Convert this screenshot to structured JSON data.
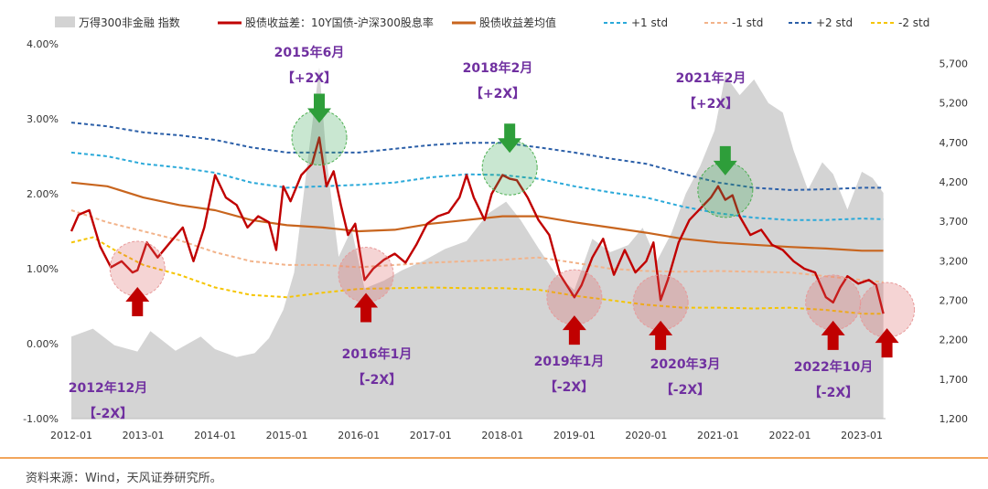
{
  "source": "资料来源：Wind，天风证券研究所。",
  "chart_data": {
    "type": "area+line",
    "title": "",
    "legend": [
      {
        "label": "万得300非金融 指数",
        "color": "#d3d3d3",
        "style": "area"
      },
      {
        "label": "股债收益差：10Y国债-沪深300股息率",
        "color": "#c00000",
        "style": "line"
      },
      {
        "label": "股债收益差均值",
        "color": "#c8651e",
        "style": "line"
      },
      {
        "label": "+1 std",
        "color": "#2aa9d9",
        "style": "dash"
      },
      {
        "label": "-1 std",
        "color": "#f2b38a",
        "style": "dash"
      },
      {
        "label": "+2 std",
        "color": "#2b5fa8",
        "style": "dash"
      },
      {
        "label": "-2 std",
        "color": "#f5c400",
        "style": "dash"
      }
    ],
    "x_ticks": [
      "2012-01",
      "2013-01",
      "2014-01",
      "2015-01",
      "2016-01",
      "2017-01",
      "2018-01",
      "2019-01",
      "2020-01",
      "2021-01",
      "2022-01",
      "2023-01"
    ],
    "y_left_ticks": [
      "4.00%",
      "3.00%",
      "2.00%",
      "1.00%",
      "0.00%",
      "-1.00%"
    ],
    "y_left_range": [
      -1.0,
      4.0
    ],
    "y_right_ticks": [
      "5,700",
      "5,200",
      "4,700",
      "4,200",
      "3,700",
      "3,200",
      "2,700",
      "2,200",
      "1,700",
      "1,200"
    ],
    "y_right_range": [
      1200,
      5950
    ],
    "x_range": [
      2012.0,
      2023.33
    ],
    "index_series": [
      [
        2012.0,
        2240
      ],
      [
        2012.3,
        2340
      ],
      [
        2012.6,
        2130
      ],
      [
        2012.92,
        2050
      ],
      [
        2013.1,
        2310
      ],
      [
        2013.45,
        2060
      ],
      [
        2013.8,
        2240
      ],
      [
        2014.0,
        2080
      ],
      [
        2014.3,
        1980
      ],
      [
        2014.55,
        2030
      ],
      [
        2014.75,
        2220
      ],
      [
        2014.95,
        2580
      ],
      [
        2015.1,
        3050
      ],
      [
        2015.3,
        4550
      ],
      [
        2015.45,
        5650
      ],
      [
        2015.55,
        4500
      ],
      [
        2015.72,
        3250
      ],
      [
        2015.9,
        3600
      ],
      [
        2016.08,
        2850
      ],
      [
        2016.35,
        2950
      ],
      [
        2016.6,
        3080
      ],
      [
        2016.9,
        3200
      ],
      [
        2017.2,
        3350
      ],
      [
        2017.5,
        3450
      ],
      [
        2017.8,
        3800
      ],
      [
        2018.05,
        3950
      ],
      [
        2018.25,
        3720
      ],
      [
        2018.5,
        3360
      ],
      [
        2018.75,
        3020
      ],
      [
        2019.0,
        2830
      ],
      [
        2019.25,
        3480
      ],
      [
        2019.5,
        3310
      ],
      [
        2019.75,
        3400
      ],
      [
        2019.95,
        3620
      ],
      [
        2020.15,
        3200
      ],
      [
        2020.35,
        3550
      ],
      [
        2020.55,
        4050
      ],
      [
        2020.75,
        4400
      ],
      [
        2020.95,
        4850
      ],
      [
        2021.1,
        5550
      ],
      [
        2021.3,
        5300
      ],
      [
        2021.5,
        5500
      ],
      [
        2021.7,
        5200
      ],
      [
        2021.9,
        5080
      ],
      [
        2022.05,
        4600
      ],
      [
        2022.25,
        4100
      ],
      [
        2022.45,
        4450
      ],
      [
        2022.6,
        4300
      ],
      [
        2022.8,
        3850
      ],
      [
        2023.0,
        4330
      ],
      [
        2023.15,
        4250
      ],
      [
        2023.3,
        4060
      ]
    ],
    "spread_series": [
      [
        2012.0,
        1.5
      ],
      [
        2012.1,
        1.72
      ],
      [
        2012.25,
        1.78
      ],
      [
        2012.4,
        1.3
      ],
      [
        2012.55,
        1.02
      ],
      [
        2012.7,
        1.1
      ],
      [
        2012.85,
        0.95
      ],
      [
        2012.92,
        0.98
      ],
      [
        2013.05,
        1.35
      ],
      [
        2013.2,
        1.15
      ],
      [
        2013.4,
        1.38
      ],
      [
        2013.55,
        1.55
      ],
      [
        2013.7,
        1.1
      ],
      [
        2013.85,
        1.55
      ],
      [
        2014.0,
        2.25
      ],
      [
        2014.15,
        1.95
      ],
      [
        2014.3,
        1.85
      ],
      [
        2014.45,
        1.55
      ],
      [
        2014.6,
        1.7
      ],
      [
        2014.75,
        1.62
      ],
      [
        2014.85,
        1.25
      ],
      [
        2014.95,
        2.1
      ],
      [
        2015.05,
        1.9
      ],
      [
        2015.2,
        2.25
      ],
      [
        2015.35,
        2.4
      ],
      [
        2015.45,
        2.75
      ],
      [
        2015.55,
        2.1
      ],
      [
        2015.65,
        2.3
      ],
      [
        2015.75,
        1.85
      ],
      [
        2015.85,
        1.45
      ],
      [
        2015.95,
        1.6
      ],
      [
        2016.08,
        0.85
      ],
      [
        2016.2,
        1.0
      ],
      [
        2016.35,
        1.12
      ],
      [
        2016.5,
        1.2
      ],
      [
        2016.65,
        1.08
      ],
      [
        2016.8,
        1.32
      ],
      [
        2016.95,
        1.6
      ],
      [
        2017.1,
        1.7
      ],
      [
        2017.25,
        1.75
      ],
      [
        2017.4,
        1.95
      ],
      [
        2017.5,
        2.25
      ],
      [
        2017.6,
        1.95
      ],
      [
        2017.75,
        1.65
      ],
      [
        2017.85,
        2.0
      ],
      [
        2018.0,
        2.25
      ],
      [
        2018.1,
        2.2
      ],
      [
        2018.2,
        2.18
      ],
      [
        2018.35,
        1.95
      ],
      [
        2018.5,
        1.65
      ],
      [
        2018.65,
        1.45
      ],
      [
        2018.8,
        0.92
      ],
      [
        2019.0,
        0.62
      ],
      [
        2019.1,
        0.78
      ],
      [
        2019.25,
        1.15
      ],
      [
        2019.4,
        1.4
      ],
      [
        2019.55,
        0.92
      ],
      [
        2019.7,
        1.25
      ],
      [
        2019.85,
        0.95
      ],
      [
        2020.0,
        1.1
      ],
      [
        2020.1,
        1.35
      ],
      [
        2020.2,
        0.58
      ],
      [
        2020.3,
        0.85
      ],
      [
        2020.45,
        1.35
      ],
      [
        2020.6,
        1.65
      ],
      [
        2020.75,
        1.8
      ],
      [
        2020.9,
        1.95
      ],
      [
        2021.0,
        2.1
      ],
      [
        2021.1,
        1.92
      ],
      [
        2021.2,
        1.98
      ],
      [
        2021.3,
        1.7
      ],
      [
        2021.45,
        1.45
      ],
      [
        2021.6,
        1.52
      ],
      [
        2021.75,
        1.32
      ],
      [
        2021.9,
        1.25
      ],
      [
        2022.05,
        1.1
      ],
      [
        2022.2,
        1.0
      ],
      [
        2022.35,
        0.95
      ],
      [
        2022.5,
        0.62
      ],
      [
        2022.6,
        0.55
      ],
      [
        2022.7,
        0.75
      ],
      [
        2022.8,
        0.9
      ],
      [
        2022.95,
        0.8
      ],
      [
        2023.1,
        0.85
      ],
      [
        2023.2,
        0.78
      ],
      [
        2023.3,
        0.4
      ]
    ],
    "mean_series": [
      [
        2012.0,
        2.15
      ],
      [
        2012.5,
        2.1
      ],
      [
        2013.0,
        1.95
      ],
      [
        2013.5,
        1.85
      ],
      [
        2014.0,
        1.78
      ],
      [
        2014.5,
        1.65
      ],
      [
        2015.0,
        1.58
      ],
      [
        2015.5,
        1.55
      ],
      [
        2016.0,
        1.5
      ],
      [
        2016.5,
        1.52
      ],
      [
        2017.0,
        1.6
      ],
      [
        2017.5,
        1.65
      ],
      [
        2018.0,
        1.7
      ],
      [
        2018.5,
        1.7
      ],
      [
        2019.0,
        1.62
      ],
      [
        2019.5,
        1.55
      ],
      [
        2020.0,
        1.48
      ],
      [
        2020.5,
        1.4
      ],
      [
        2021.0,
        1.35
      ],
      [
        2021.5,
        1.32
      ],
      [
        2022.0,
        1.29
      ],
      [
        2022.5,
        1.27
      ],
      [
        2023.0,
        1.24
      ],
      [
        2023.3,
        1.24
      ]
    ],
    "plus1_series": [
      [
        2012.0,
        2.55
      ],
      [
        2012.5,
        2.5
      ],
      [
        2013.0,
        2.4
      ],
      [
        2013.5,
        2.35
      ],
      [
        2014.0,
        2.28
      ],
      [
        2014.5,
        2.15
      ],
      [
        2015.0,
        2.08
      ],
      [
        2015.5,
        2.1
      ],
      [
        2016.0,
        2.12
      ],
      [
        2016.5,
        2.15
      ],
      [
        2017.0,
        2.22
      ],
      [
        2017.5,
        2.26
      ],
      [
        2018.0,
        2.25
      ],
      [
        2018.5,
        2.2
      ],
      [
        2019.0,
        2.1
      ],
      [
        2019.5,
        2.02
      ],
      [
        2020.0,
        1.95
      ],
      [
        2020.5,
        1.83
      ],
      [
        2021.0,
        1.74
      ],
      [
        2021.5,
        1.68
      ],
      [
        2022.0,
        1.65
      ],
      [
        2022.5,
        1.65
      ],
      [
        2023.0,
        1.67
      ],
      [
        2023.3,
        1.66
      ]
    ],
    "minus1_series": [
      [
        2012.0,
        1.78
      ],
      [
        2012.5,
        1.62
      ],
      [
        2013.0,
        1.5
      ],
      [
        2013.5,
        1.38
      ],
      [
        2014.0,
        1.22
      ],
      [
        2014.5,
        1.1
      ],
      [
        2015.0,
        1.05
      ],
      [
        2015.5,
        1.05
      ],
      [
        2016.0,
        1.02
      ],
      [
        2016.5,
        1.05
      ],
      [
        2017.0,
        1.08
      ],
      [
        2017.5,
        1.1
      ],
      [
        2018.0,
        1.12
      ],
      [
        2018.5,
        1.15
      ],
      [
        2019.0,
        1.08
      ],
      [
        2019.5,
        1.0
      ],
      [
        2020.0,
        0.97
      ],
      [
        2020.5,
        0.96
      ],
      [
        2021.0,
        0.97
      ],
      [
        2021.5,
        0.96
      ],
      [
        2022.0,
        0.95
      ],
      [
        2022.5,
        0.9
      ],
      [
        2023.0,
        0.85
      ],
      [
        2023.3,
        0.82
      ]
    ],
    "plus2_series": [
      [
        2012.0,
        2.95
      ],
      [
        2012.5,
        2.9
      ],
      [
        2013.0,
        2.82
      ],
      [
        2013.5,
        2.78
      ],
      [
        2014.0,
        2.72
      ],
      [
        2014.5,
        2.62
      ],
      [
        2015.0,
        2.55
      ],
      [
        2015.5,
        2.55
      ],
      [
        2016.0,
        2.55
      ],
      [
        2016.5,
        2.6
      ],
      [
        2017.0,
        2.65
      ],
      [
        2017.5,
        2.68
      ],
      [
        2018.0,
        2.68
      ],
      [
        2018.5,
        2.62
      ],
      [
        2019.0,
        2.55
      ],
      [
        2019.5,
        2.47
      ],
      [
        2020.0,
        2.4
      ],
      [
        2020.5,
        2.27
      ],
      [
        2021.0,
        2.15
      ],
      [
        2021.5,
        2.08
      ],
      [
        2022.0,
        2.05
      ],
      [
        2022.5,
        2.06
      ],
      [
        2023.0,
        2.08
      ],
      [
        2023.3,
        2.08
      ]
    ],
    "minus2_series": [
      [
        2012.0,
        1.35
      ],
      [
        2012.3,
        1.42
      ],
      [
        2012.6,
        1.25
      ],
      [
        2013.0,
        1.05
      ],
      [
        2013.5,
        0.92
      ],
      [
        2014.0,
        0.75
      ],
      [
        2014.5,
        0.65
      ],
      [
        2015.0,
        0.62
      ],
      [
        2015.5,
        0.68
      ],
      [
        2016.0,
        0.73
      ],
      [
        2016.5,
        0.74
      ],
      [
        2017.0,
        0.75
      ],
      [
        2017.5,
        0.74
      ],
      [
        2018.0,
        0.74
      ],
      [
        2018.5,
        0.72
      ],
      [
        2019.0,
        0.64
      ],
      [
        2019.5,
        0.58
      ],
      [
        2020.0,
        0.52
      ],
      [
        2020.5,
        0.48
      ],
      [
        2021.0,
        0.48
      ],
      [
        2021.5,
        0.47
      ],
      [
        2022.0,
        0.48
      ],
      [
        2022.5,
        0.45
      ],
      [
        2023.0,
        0.4
      ],
      [
        2023.3,
        0.4
      ]
    ],
    "annotations": [
      {
        "date": "2015年6月",
        "tag": "【+2X】",
        "x": 2015.45,
        "y": 2.75,
        "kind": "top",
        "text_color": "#7030a0"
      },
      {
        "date": "2018年2月",
        "tag": "【+2X】",
        "x": 2018.1,
        "y": 2.35,
        "kind": "top",
        "text_color": "#7030a0"
      },
      {
        "date": "2021年2月",
        "tag": "【+2X】",
        "x": 2021.1,
        "y": 2.05,
        "kind": "top",
        "text_color": "#7030a0"
      },
      {
        "date": "2012年12月",
        "tag": "【-2X】",
        "x": 2012.92,
        "y": 1.0,
        "kind": "bottom",
        "text_color": "#7030a0"
      },
      {
        "date": "2016年1月",
        "tag": "【-2X】",
        "x": 2016.1,
        "y": 0.92,
        "kind": "bottom",
        "text_color": "#7030a0"
      },
      {
        "date": "2019年1月",
        "tag": "【-2X】",
        "x": 2019.0,
        "y": 0.62,
        "kind": "bottom",
        "text_color": "#7030a0"
      },
      {
        "date": "2020年3月",
        "tag": "【-2X】",
        "x": 2020.2,
        "y": 0.55,
        "kind": "bottom",
        "text_color": "#7030a0"
      },
      {
        "date": "2022年10月",
        "tag": "【-2X】",
        "x": 2022.6,
        "y": 0.55,
        "kind": "bottom",
        "text_color": "#7030a0"
      },
      {
        "date": "",
        "tag": "",
        "x": 2023.35,
        "y": 0.45,
        "kind": "bottom",
        "text_color": "#7030a0"
      }
    ]
  }
}
